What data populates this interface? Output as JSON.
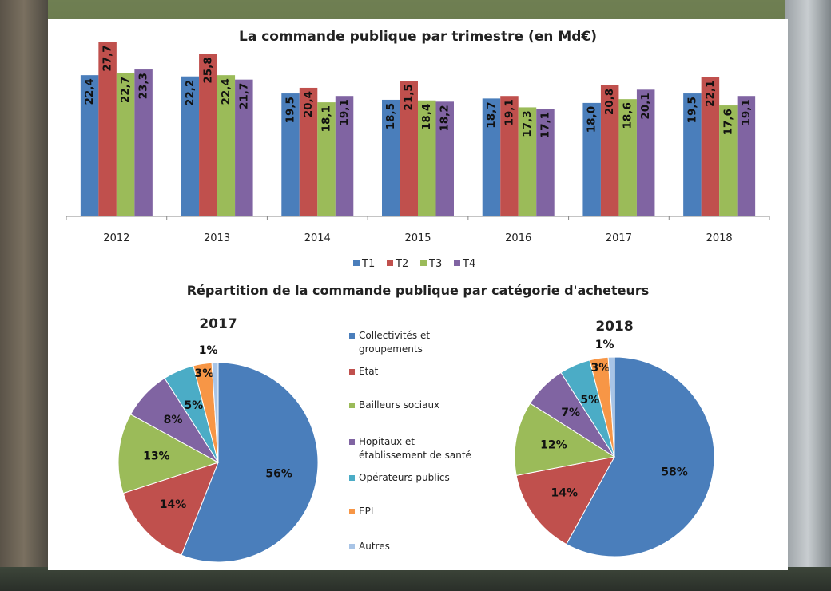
{
  "chart_data": [
    {
      "type": "bar",
      "title": "La commande publique par trimestre (en Md€)",
      "categories": [
        "2012",
        "2013",
        "2014",
        "2015",
        "2016",
        "2017",
        "2018"
      ],
      "series": [
        {
          "name": "T1",
          "color": "#4a7ebb",
          "values": [
            22.4,
            22.2,
            19.5,
            18.5,
            18.7,
            18.0,
            19.5
          ],
          "labels": [
            "22,4",
            "22,2",
            "19,5",
            "18,5",
            "18,7",
            "18,0",
            "19,5"
          ]
        },
        {
          "name": "T2",
          "color": "#c0504d",
          "values": [
            27.7,
            25.8,
            20.4,
            21.5,
            19.1,
            20.8,
            22.1
          ],
          "labels": [
            "27,7",
            "25,8",
            "20,4",
            "21,5",
            "19,1",
            "20,8",
            "22,1"
          ]
        },
        {
          "name": "T3",
          "color": "#9bbb59",
          "values": [
            22.7,
            22.4,
            18.1,
            18.4,
            17.3,
            18.6,
            17.6
          ],
          "labels": [
            "22,7",
            "22,4",
            "18,1",
            "18,4",
            "17,3",
            "18,6",
            "17,6"
          ]
        },
        {
          "name": "T4",
          "color": "#8064a2",
          "values": [
            23.3,
            21.7,
            19.1,
            18.2,
            17.1,
            20.1,
            19.1
          ],
          "labels": [
            "23,3",
            "21,7",
            "19,1",
            "18,2",
            "17,1",
            "20,1",
            "19,1"
          ]
        }
      ],
      "ylim": [
        0,
        28.5
      ],
      "legend": "bottom",
      "grid": false
    },
    {
      "type": "pie",
      "title": "Répartition de la commande publique par catégorie d'acheteurs",
      "categories": [
        "Collectivités et groupements",
        "Etat",
        "Bailleurs sociaux",
        "Hopitaux et établissement de santé",
        "Opérateurs publics",
        "EPL",
        "Autres"
      ],
      "colors": [
        "#4a7ebb",
        "#c0504d",
        "#9bbb59",
        "#8064a2",
        "#4bacc6",
        "#f79646",
        "#a8c4e6"
      ],
      "legend": "center",
      "pies": [
        {
          "title": "2017",
          "values": [
            56,
            14,
            13,
            8,
            5,
            3,
            1
          ],
          "labels": [
            "56%",
            "14%",
            "13%",
            "8%",
            "5%",
            "3%",
            "1%"
          ]
        },
        {
          "title": "2018",
          "values": [
            58,
            14,
            12,
            7,
            5,
            3,
            1
          ],
          "labels": [
            "58%",
            "14%",
            "12%",
            "7%",
            "5%",
            "3%",
            "1%"
          ]
        }
      ]
    }
  ]
}
